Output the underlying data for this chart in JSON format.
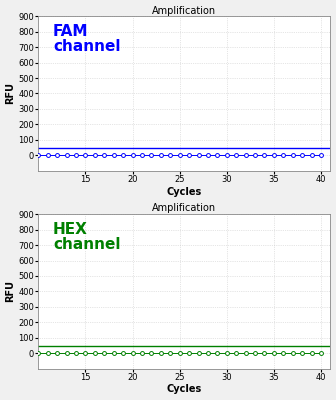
{
  "fam_label": "FAM\nchannel",
  "hex_label": "HEX\nchannel",
  "fam_color": "#0000FF",
  "hex_color": "#008000",
  "plot_title": "Amplification",
  "xlabel": "Cycles",
  "ylabel": "RFU",
  "ylim": [
    -100,
    900
  ],
  "yticks": [
    0,
    100,
    200,
    300,
    400,
    500,
    600,
    700,
    800,
    900
  ],
  "xlim": [
    10,
    41
  ],
  "xticks": [
    15,
    20,
    25,
    30,
    35,
    40
  ],
  "x_data": [
    10,
    11,
    12,
    13,
    14,
    15,
    16,
    17,
    18,
    19,
    20,
    21,
    22,
    23,
    24,
    25,
    26,
    27,
    28,
    29,
    30,
    31,
    32,
    33,
    34,
    35,
    36,
    37,
    38,
    39,
    40
  ],
  "fam_y_data": [
    0,
    0,
    0,
    0,
    0,
    0,
    0,
    0,
    0,
    0,
    0,
    0,
    0,
    0,
    0,
    0,
    0,
    0,
    0,
    0,
    0,
    0,
    0,
    0,
    0,
    0,
    0,
    0,
    0,
    0,
    0
  ],
  "hex_y_data": [
    0,
    0,
    0,
    0,
    0,
    0,
    0,
    0,
    0,
    0,
    0,
    0,
    0,
    0,
    0,
    0,
    0,
    0,
    0,
    0,
    0,
    0,
    0,
    0,
    0,
    0,
    0,
    0,
    0,
    0,
    0
  ],
  "fam_threshold": 45,
  "hex_threshold": 45,
  "background_color": "#ffffff",
  "grid_color": "#cccccc",
  "label_fontsize": 11,
  "title_fontsize": 7,
  "axis_label_fontsize": 7,
  "tick_fontsize": 6,
  "fig_bg": "#f0f0f0"
}
